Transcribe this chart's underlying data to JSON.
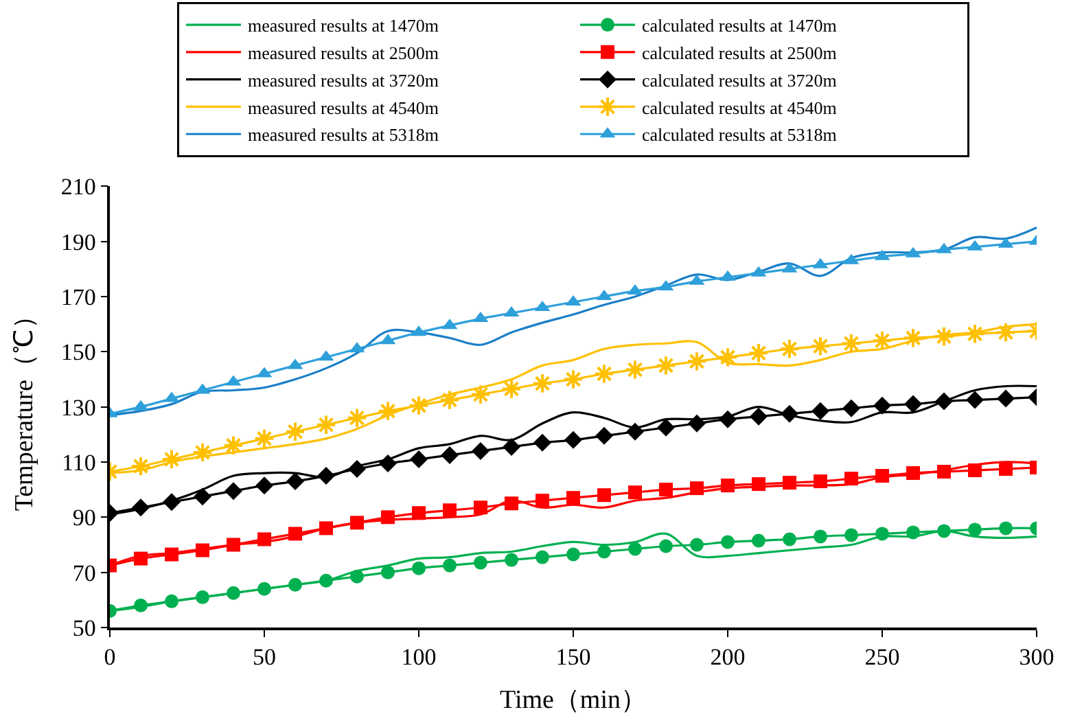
{
  "chart_data": {
    "type": "line",
    "xlabel": "Time（min）",
    "ylabel": "Temperature（℃）",
    "x": [
      0,
      10,
      20,
      30,
      40,
      50,
      60,
      70,
      80,
      90,
      100,
      110,
      120,
      130,
      140,
      150,
      160,
      170,
      180,
      190,
      200,
      210,
      220,
      230,
      240,
      250,
      260,
      270,
      280,
      290,
      300
    ],
    "xlim": [
      0,
      300
    ],
    "xticks": [
      0,
      50,
      100,
      150,
      200,
      250,
      300
    ],
    "ylim": [
      50,
      210
    ],
    "yticks": [
      50,
      70,
      90,
      110,
      130,
      150,
      170,
      190,
      210
    ],
    "legend": "top",
    "series": [
      {
        "name": "measured results at 1470m",
        "color": "#00b050",
        "marker": "none",
        "values": [
          56,
          57.5,
          59.5,
          61,
          62.5,
          64,
          65.5,
          67,
          70.5,
          72.5,
          75,
          75.5,
          77,
          77.5,
          79.5,
          81,
          80,
          81,
          84,
          76,
          76,
          77,
          78,
          79,
          80,
          83,
          83,
          85,
          83,
          82.5,
          83
        ]
      },
      {
        "name": "calculated results at 1470m",
        "color": "#00b050",
        "marker": "circle",
        "values": [
          56,
          58,
          59.5,
          61,
          62.5,
          64,
          65.5,
          67,
          68.5,
          70,
          71.5,
          72.5,
          73.5,
          74.5,
          75.5,
          76.5,
          77.5,
          78.5,
          79.5,
          80,
          81,
          81.5,
          82,
          83,
          83.5,
          84,
          84.5,
          85,
          85.5,
          86,
          86
        ]
      },
      {
        "name": "measured results at 2500m",
        "color": "#ff0000",
        "marker": "none",
        "values": [
          72.5,
          76,
          77,
          78.5,
          80,
          81,
          83,
          86,
          88,
          89,
          89.5,
          90,
          91,
          96,
          93.5,
          94.5,
          93.5,
          96,
          97,
          99,
          100.5,
          101,
          101.5,
          101.5,
          102,
          104.5,
          105.5,
          107,
          109,
          110,
          109.5
        ]
      },
      {
        "name": "calculated results at 2500m",
        "color": "#ff0000",
        "marker": "square",
        "values": [
          72.5,
          75,
          76.5,
          78,
          80,
          82,
          84,
          86,
          88,
          90,
          91.5,
          92.5,
          93.5,
          95,
          96,
          97,
          98,
          99,
          100,
          100.5,
          101.5,
          102,
          102.5,
          103,
          104,
          105,
          106,
          106.5,
          107,
          107.5,
          108
        ]
      },
      {
        "name": "measured results at 3720m",
        "color": "#000000",
        "marker": "none",
        "values": [
          91,
          93,
          96,
          100,
          105,
          106,
          106,
          104.5,
          108.5,
          111,
          115,
          116.5,
          119.5,
          118,
          124,
          128,
          126,
          122.5,
          125.5,
          125.5,
          126.5,
          130,
          127,
          125,
          124.5,
          128,
          128,
          132,
          136,
          137.5,
          137.5
        ]
      },
      {
        "name": "calculated results at 3720m",
        "color": "#000000",
        "marker": "diamond",
        "values": [
          91.5,
          93.5,
          95.5,
          97.5,
          99.5,
          101.5,
          103,
          105,
          107.5,
          109.5,
          111,
          112.5,
          114,
          115.5,
          117,
          118,
          119.5,
          121,
          122.5,
          124,
          125.5,
          126.5,
          127.5,
          128.5,
          129.5,
          130.5,
          131,
          132,
          132.5,
          133,
          133.5
        ]
      },
      {
        "name": "measured results at 4540m",
        "color": "#ffc000",
        "marker": "none",
        "values": [
          106,
          107,
          110,
          112,
          113.5,
          115,
          116.5,
          118.5,
          122,
          127,
          131,
          134.5,
          137,
          140,
          145,
          147,
          151,
          152.5,
          153,
          153.5,
          146,
          145.5,
          145,
          147,
          150,
          151,
          154,
          156,
          157,
          159,
          160
        ]
      },
      {
        "name": "calculated results at 4540m",
        "color": "#ffc000",
        "marker": "cross",
        "values": [
          106.5,
          108.5,
          111,
          113.5,
          116,
          118.5,
          121,
          123.5,
          126,
          128.5,
          130.5,
          132.5,
          134.5,
          136.5,
          138.5,
          140,
          142,
          143.5,
          145,
          146.5,
          148,
          149.5,
          151,
          152,
          153,
          154,
          155,
          155.5,
          156.5,
          157,
          157.5
        ]
      },
      {
        "name": "measured results at 5318m",
        "color": "#1a7fc9",
        "marker": "none",
        "values": [
          127,
          128.5,
          131,
          135.5,
          136,
          137,
          140,
          144,
          149.5,
          157.5,
          157,
          155,
          152.5,
          157,
          160.5,
          163.5,
          167,
          170,
          174,
          178,
          176,
          179,
          182,
          177.5,
          184,
          186,
          186,
          187,
          191.5,
          191,
          195
        ]
      },
      {
        "name": "calculated results at 5318m",
        "color": "#2ea0da",
        "marker": "triangle",
        "values": [
          127.5,
          130,
          133,
          136,
          139,
          142,
          145,
          148,
          151,
          154,
          157,
          159.5,
          162,
          164,
          166,
          168,
          170,
          172,
          173.5,
          175.5,
          177,
          178.5,
          180,
          181.5,
          183,
          184.5,
          185.5,
          187,
          188,
          189,
          190
        ]
      }
    ]
  }
}
